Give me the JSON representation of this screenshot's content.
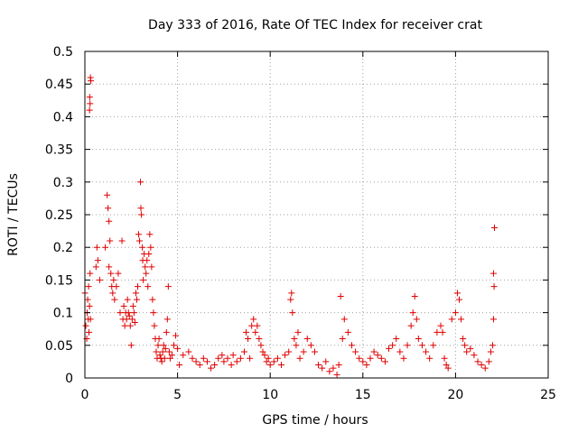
{
  "chart_data": {
    "type": "scatter",
    "title": "Day 333 of 2016, Rate Of TEC Index for receiver crat",
    "xlabel": "GPS time / hours",
    "ylabel": "ROTI / TECUs",
    "xlim": [
      0,
      25
    ],
    "ylim": [
      0,
      0.5
    ],
    "x_ticks": [
      0,
      5,
      10,
      15,
      20,
      25
    ],
    "y_ticks": [
      0,
      0.05,
      0.1,
      0.15,
      0.2,
      0.25,
      0.3,
      0.35,
      0.4,
      0.45,
      0.5
    ],
    "grid": true,
    "marker": "plus",
    "marker_color": "#e00000",
    "series": [
      {
        "points": [
          [
            0.0,
            0.13
          ],
          [
            0.05,
            0.08
          ],
          [
            0.1,
            0.06
          ],
          [
            0.12,
            0.1
          ],
          [
            0.15,
            0.12
          ],
          [
            0.18,
            0.09
          ],
          [
            0.2,
            0.14
          ],
          [
            0.22,
            0.07
          ],
          [
            0.25,
            0.11
          ],
          [
            0.28,
            0.16
          ],
          [
            0.3,
            0.09
          ],
          [
            0.25,
            0.41
          ],
          [
            0.26,
            0.43
          ],
          [
            0.28,
            0.42
          ],
          [
            0.3,
            0.46
          ],
          [
            0.32,
            0.455
          ],
          [
            0.6,
            0.17
          ],
          [
            0.65,
            0.2
          ],
          [
            0.7,
            0.18
          ],
          [
            0.8,
            0.15
          ],
          [
            1.1,
            0.2
          ],
          [
            1.2,
            0.28
          ],
          [
            1.25,
            0.26
          ],
          [
            1.3,
            0.24
          ],
          [
            1.3,
            0.17
          ],
          [
            1.35,
            0.21
          ],
          [
            1.4,
            0.16
          ],
          [
            1.45,
            0.14
          ],
          [
            1.5,
            0.13
          ],
          [
            1.55,
            0.15
          ],
          [
            1.6,
            0.12
          ],
          [
            1.7,
            0.14
          ],
          [
            1.8,
            0.16
          ],
          [
            1.9,
            0.1
          ],
          [
            2.0,
            0.21
          ],
          [
            2.05,
            0.09
          ],
          [
            2.1,
            0.11
          ],
          [
            2.15,
            0.08
          ],
          [
            2.2,
            0.1
          ],
          [
            2.25,
            0.09
          ],
          [
            2.3,
            0.12
          ],
          [
            2.35,
            0.1
          ],
          [
            2.4,
            0.095
          ],
          [
            2.45,
            0.08
          ],
          [
            2.5,
            0.05
          ],
          [
            2.55,
            0.09
          ],
          [
            2.6,
            0.11
          ],
          [
            2.65,
            0.1
          ],
          [
            2.7,
            0.085
          ],
          [
            2.75,
            0.13
          ],
          [
            2.8,
            0.12
          ],
          [
            2.85,
            0.14
          ],
          [
            2.9,
            0.22
          ],
          [
            2.95,
            0.21
          ],
          [
            3.0,
            0.3
          ],
          [
            3.02,
            0.26
          ],
          [
            3.05,
            0.25
          ],
          [
            3.1,
            0.2
          ],
          [
            3.12,
            0.18
          ],
          [
            3.15,
            0.15
          ],
          [
            3.2,
            0.19
          ],
          [
            3.25,
            0.17
          ],
          [
            3.3,
            0.16
          ],
          [
            3.35,
            0.18
          ],
          [
            3.4,
            0.14
          ],
          [
            3.45,
            0.19
          ],
          [
            3.5,
            0.22
          ],
          [
            3.55,
            0.2
          ],
          [
            3.6,
            0.17
          ],
          [
            3.65,
            0.12
          ],
          [
            3.7,
            0.1
          ],
          [
            3.75,
            0.08
          ],
          [
            3.8,
            0.06
          ],
          [
            3.85,
            0.04
          ],
          [
            3.9,
            0.03
          ],
          [
            3.95,
            0.05
          ],
          [
            4.0,
            0.06
          ],
          [
            4.05,
            0.035
          ],
          [
            4.1,
            0.03
          ],
          [
            4.15,
            0.025
          ],
          [
            4.2,
            0.04
          ],
          [
            4.25,
            0.05
          ],
          [
            4.3,
            0.03
          ],
          [
            4.35,
            0.045
          ],
          [
            4.4,
            0.07
          ],
          [
            4.45,
            0.09
          ],
          [
            4.5,
            0.14
          ],
          [
            4.55,
            0.04
          ],
          [
            4.6,
            0.03
          ],
          [
            4.7,
            0.035
          ],
          [
            4.8,
            0.05
          ],
          [
            4.9,
            0.065
          ],
          [
            5.0,
            0.045
          ],
          [
            5.1,
            0.02
          ],
          [
            5.3,
            0.035
          ],
          [
            5.6,
            0.04
          ],
          [
            5.8,
            0.03
          ],
          [
            6.0,
            0.025
          ],
          [
            6.2,
            0.02
          ],
          [
            6.4,
            0.03
          ],
          [
            6.6,
            0.025
          ],
          [
            6.8,
            0.015
          ],
          [
            7.0,
            0.02
          ],
          [
            7.2,
            0.03
          ],
          [
            7.4,
            0.035
          ],
          [
            7.5,
            0.025
          ],
          [
            7.7,
            0.03
          ],
          [
            7.9,
            0.02
          ],
          [
            8.0,
            0.035
          ],
          [
            8.2,
            0.025
          ],
          [
            8.4,
            0.03
          ],
          [
            8.6,
            0.04
          ],
          [
            8.7,
            0.07
          ],
          [
            8.8,
            0.06
          ],
          [
            8.9,
            0.03
          ],
          [
            9.0,
            0.08
          ],
          [
            9.1,
            0.09
          ],
          [
            9.2,
            0.07
          ],
          [
            9.3,
            0.08
          ],
          [
            9.4,
            0.06
          ],
          [
            9.5,
            0.05
          ],
          [
            9.6,
            0.04
          ],
          [
            9.7,
            0.035
          ],
          [
            9.8,
            0.025
          ],
          [
            9.9,
            0.03
          ],
          [
            10.0,
            0.02
          ],
          [
            10.2,
            0.025
          ],
          [
            10.4,
            0.03
          ],
          [
            10.6,
            0.02
          ],
          [
            10.8,
            0.035
          ],
          [
            11.0,
            0.04
          ],
          [
            11.1,
            0.12
          ],
          [
            11.15,
            0.13
          ],
          [
            11.2,
            0.1
          ],
          [
            11.3,
            0.06
          ],
          [
            11.4,
            0.05
          ],
          [
            11.5,
            0.07
          ],
          [
            11.6,
            0.03
          ],
          [
            11.8,
            0.04
          ],
          [
            12.0,
            0.06
          ],
          [
            12.2,
            0.05
          ],
          [
            12.4,
            0.04
          ],
          [
            12.6,
            0.02
          ],
          [
            12.8,
            0.015
          ],
          [
            13.0,
            0.025
          ],
          [
            13.2,
            0.01
          ],
          [
            13.4,
            0.015
          ],
          [
            13.6,
            0.005
          ],
          [
            13.7,
            0.02
          ],
          [
            13.8,
            0.125
          ],
          [
            13.9,
            0.06
          ],
          [
            14.0,
            0.09
          ],
          [
            14.2,
            0.07
          ],
          [
            14.4,
            0.05
          ],
          [
            14.6,
            0.04
          ],
          [
            14.8,
            0.03
          ],
          [
            15.0,
            0.025
          ],
          [
            15.2,
            0.02
          ],
          [
            15.4,
            0.03
          ],
          [
            15.6,
            0.04
          ],
          [
            15.8,
            0.035
          ],
          [
            16.0,
            0.03
          ],
          [
            16.2,
            0.025
          ],
          [
            16.4,
            0.045
          ],
          [
            16.6,
            0.05
          ],
          [
            16.8,
            0.06
          ],
          [
            17.0,
            0.04
          ],
          [
            17.2,
            0.03
          ],
          [
            17.4,
            0.05
          ],
          [
            17.6,
            0.08
          ],
          [
            17.7,
            0.1
          ],
          [
            17.8,
            0.125
          ],
          [
            17.9,
            0.09
          ],
          [
            18.0,
            0.06
          ],
          [
            18.2,
            0.05
          ],
          [
            18.4,
            0.04
          ],
          [
            18.6,
            0.03
          ],
          [
            18.8,
            0.05
          ],
          [
            19.0,
            0.07
          ],
          [
            19.2,
            0.08
          ],
          [
            19.3,
            0.07
          ],
          [
            19.4,
            0.03
          ],
          [
            19.5,
            0.02
          ],
          [
            19.6,
            0.015
          ],
          [
            19.8,
            0.09
          ],
          [
            20.0,
            0.1
          ],
          [
            20.1,
            0.13
          ],
          [
            20.2,
            0.12
          ],
          [
            20.3,
            0.09
          ],
          [
            20.4,
            0.06
          ],
          [
            20.5,
            0.05
          ],
          [
            20.6,
            0.04
          ],
          [
            20.8,
            0.045
          ],
          [
            21.0,
            0.035
          ],
          [
            21.2,
            0.025
          ],
          [
            21.4,
            0.02
          ],
          [
            21.6,
            0.015
          ],
          [
            21.8,
            0.025
          ],
          [
            21.9,
            0.04
          ],
          [
            22.0,
            0.05
          ],
          [
            22.05,
            0.09
          ],
          [
            22.05,
            0.16
          ],
          [
            22.08,
            0.14
          ],
          [
            22.1,
            0.23
          ]
        ]
      }
    ]
  }
}
